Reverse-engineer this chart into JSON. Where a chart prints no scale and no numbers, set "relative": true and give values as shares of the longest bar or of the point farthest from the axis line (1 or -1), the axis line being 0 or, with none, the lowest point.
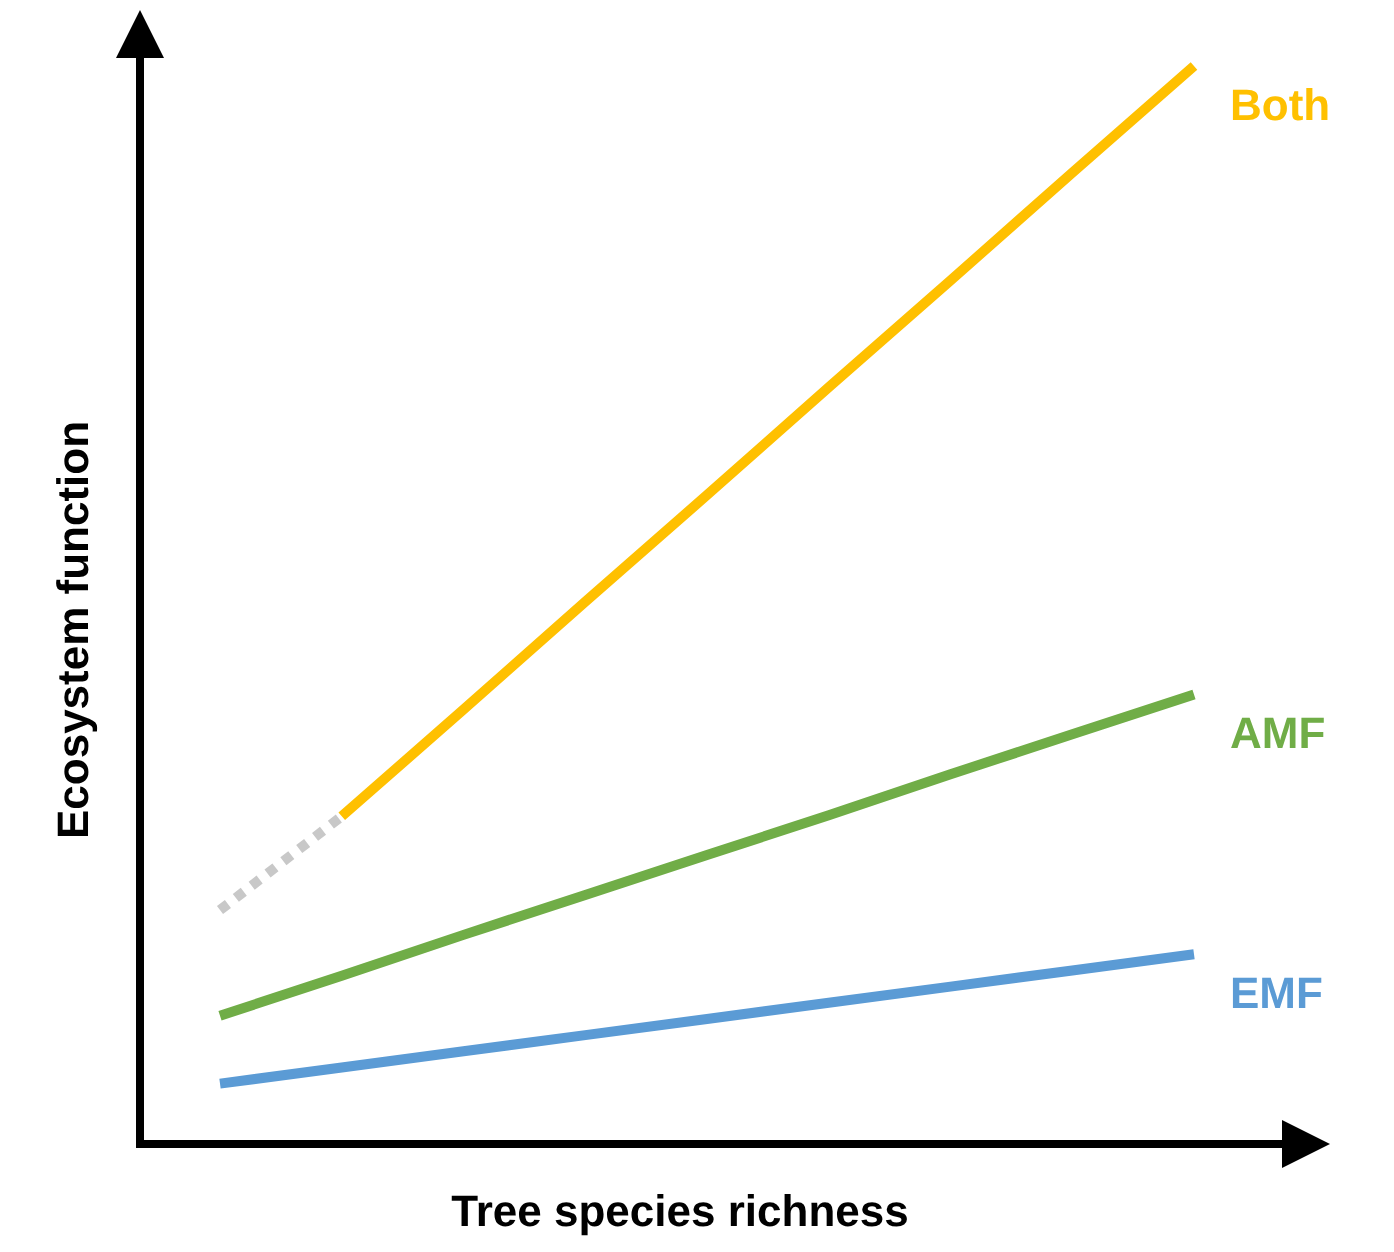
{
  "chart_data": {
    "type": "line",
    "relative": true,
    "xlabel": "Tree species richness",
    "ylabel": "Ecosystem function",
    "categories": [
      null,
      null,
      null,
      null,
      null,
      null,
      null,
      null,
      null
    ],
    "series": [
      {
        "color": "#c8c8c8",
        "line_style": "dotted",
        "values": [
          0.217,
          0.304,
          null,
          null,
          null,
          null,
          null,
          null,
          null
        ]
      },
      {
        "name": "Both",
        "color": "#ffc000",
        "values": [
          null,
          0.304,
          0.403,
          0.503,
          0.602,
          0.702,
          0.801,
          0.901,
          1.0
        ]
      },
      {
        "name": "AMF",
        "color": "#70ad47",
        "values": [
          0.119,
          0.156,
          0.194,
          0.231,
          0.268,
          0.305,
          0.343,
          0.38,
          0.417
        ]
      },
      {
        "name": "EMF",
        "color": "#5b9bd5",
        "values": [
          0.056,
          0.071,
          0.086,
          0.101,
          0.116,
          0.131,
          0.146,
          0.161,
          0.176
        ]
      }
    ]
  }
}
